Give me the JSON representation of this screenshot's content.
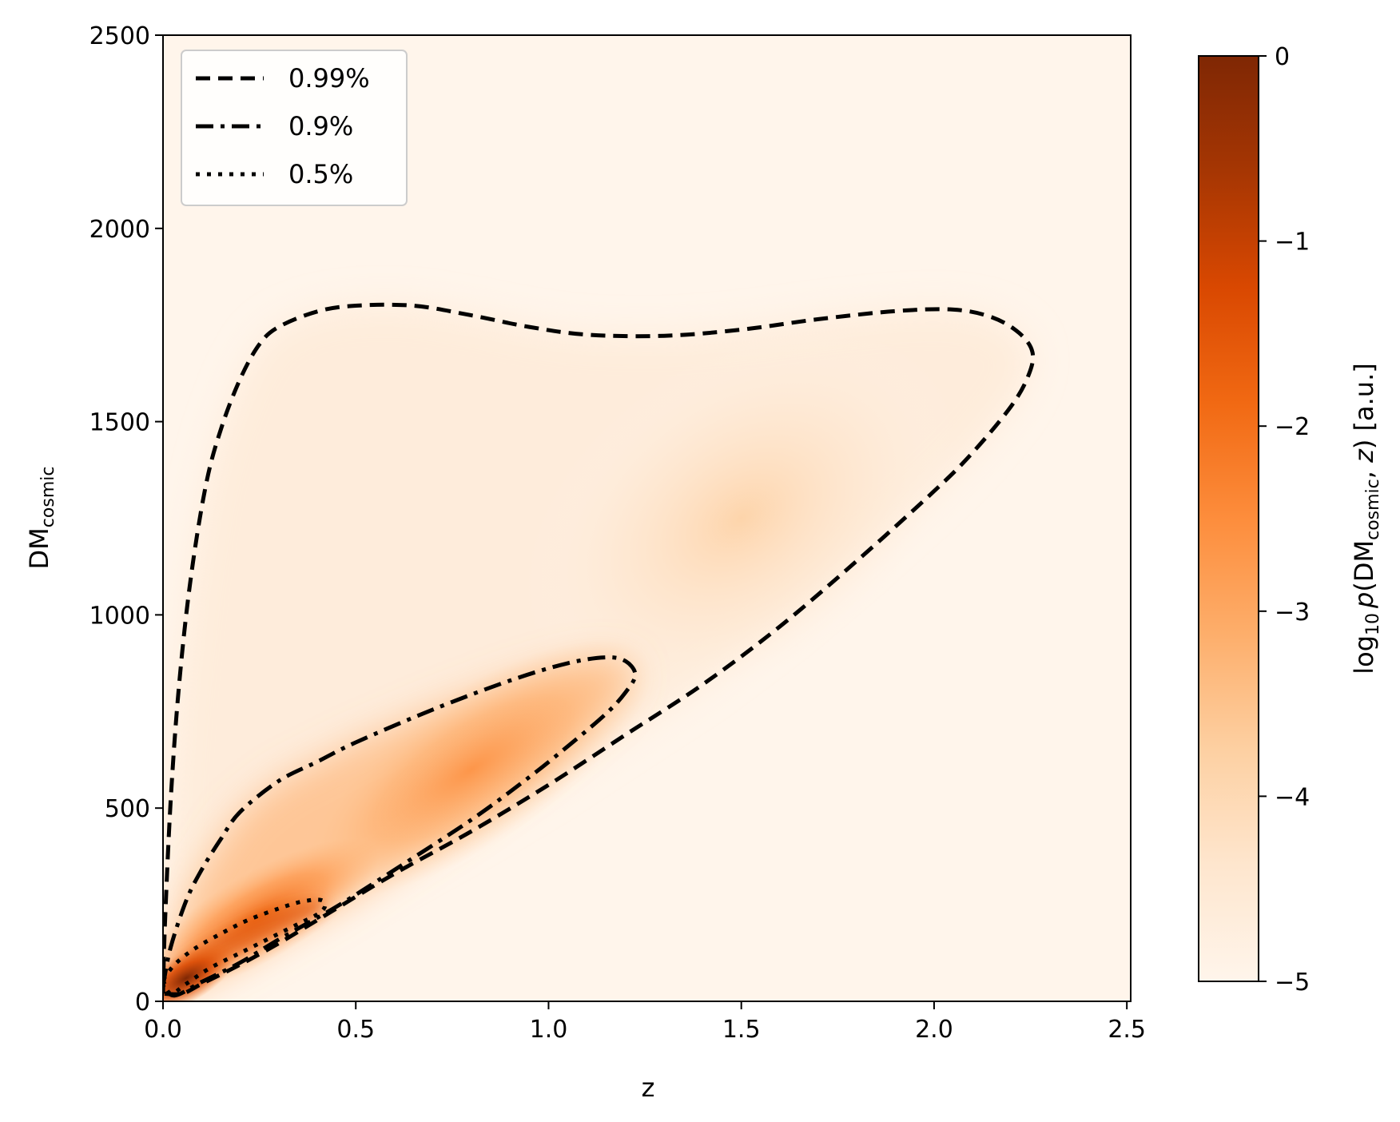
{
  "chart_data": {
    "type": "heatmap",
    "subtype": "2D probability density with contours",
    "xlabel": "z",
    "ylabel": {
      "base": "DM",
      "sub": "cosmic"
    },
    "xlim": [
      0.0,
      2.51
    ],
    "ylim": [
      0,
      2500
    ],
    "x_ticks": [
      {
        "value": 0.0,
        "label": "0.0"
      },
      {
        "value": 0.5,
        "label": "0.5"
      },
      {
        "value": 1.0,
        "label": "1.0"
      },
      {
        "value": 1.5,
        "label": "1.5"
      },
      {
        "value": 2.0,
        "label": "2.0"
      },
      {
        "value": 2.5,
        "label": "2.5"
      }
    ],
    "y_ticks": [
      {
        "value": 0,
        "label": "0"
      },
      {
        "value": 500,
        "label": "500"
      },
      {
        "value": 1000,
        "label": "1000"
      },
      {
        "value": 1500,
        "label": "1500"
      },
      {
        "value": 2000,
        "label": "2000"
      },
      {
        "value": 2500,
        "label": "2500"
      }
    ],
    "grid": false,
    "colormap": "Oranges",
    "colorbar": {
      "range": [
        -5,
        0
      ],
      "label": {
        "prefix": "log",
        "prefix_sub": "10",
        "p": "p",
        "open": "(DM",
        "sub": "cosmic",
        "close": ", ",
        "z": "z",
        "tail": ") [a.u.]"
      },
      "ticks": [
        {
          "value": 0,
          "label": "0"
        },
        {
          "value": -1,
          "label": "−1"
        },
        {
          "value": -2,
          "label": "−2"
        },
        {
          "value": -3,
          "label": "−3"
        },
        {
          "value": -4,
          "label": "−4"
        },
        {
          "value": -5,
          "label": "−5"
        }
      ],
      "stops": [
        "#fff5eb",
        "#fee6ce",
        "#fdd0a2",
        "#fdae6b",
        "#fd8d3c",
        "#f16913",
        "#d94801",
        "#a63603",
        "#7f2704"
      ]
    },
    "legend": {
      "placement": "top-left",
      "entries": [
        {
          "label": "0.99%",
          "style": "dashed"
        },
        {
          "label": "0.9%",
          "style": "dashdot"
        },
        {
          "label": "0.5%",
          "style": "dotted"
        }
      ]
    },
    "contours": [
      {
        "level": "0.99%",
        "style": "dashed",
        "points": [
          [
            0.0,
            20
          ],
          [
            0.005,
            200
          ],
          [
            0.02,
            520
          ],
          [
            0.04,
            800
          ],
          [
            0.07,
            1080
          ],
          [
            0.11,
            1330
          ],
          [
            0.15,
            1480
          ],
          [
            0.2,
            1610
          ],
          [
            0.25,
            1700
          ],
          [
            0.3,
            1745
          ],
          [
            0.4,
            1785
          ],
          [
            0.5,
            1800
          ],
          [
            0.65,
            1800
          ],
          [
            0.8,
            1775
          ],
          [
            0.95,
            1745
          ],
          [
            1.1,
            1725
          ],
          [
            1.3,
            1722
          ],
          [
            1.5,
            1738
          ],
          [
            1.7,
            1765
          ],
          [
            1.9,
            1786
          ],
          [
            2.05,
            1790
          ],
          [
            2.15,
            1770
          ],
          [
            2.22,
            1730
          ],
          [
            2.255,
            1680
          ],
          [
            2.245,
            1620
          ],
          [
            2.2,
            1540
          ],
          [
            2.1,
            1420
          ],
          [
            2.0,
            1320
          ],
          [
            1.8,
            1140
          ],
          [
            1.6,
            970
          ],
          [
            1.4,
            820
          ],
          [
            1.2,
            690
          ],
          [
            1.0,
            560
          ],
          [
            0.8,
            440
          ],
          [
            0.6,
            330
          ],
          [
            0.4,
            210
          ],
          [
            0.3,
            150
          ],
          [
            0.2,
            95
          ],
          [
            0.1,
            45
          ],
          [
            0.05,
            20
          ],
          [
            0.0,
            20
          ]
        ]
      },
      {
        "level": "0.9%",
        "style": "dashdot",
        "points": [
          [
            0.0,
            40
          ],
          [
            0.02,
            140
          ],
          [
            0.06,
            260
          ],
          [
            0.1,
            340
          ],
          [
            0.15,
            420
          ],
          [
            0.2,
            490
          ],
          [
            0.3,
            570
          ],
          [
            0.4,
            620
          ],
          [
            0.5,
            670
          ],
          [
            0.7,
            755
          ],
          [
            0.9,
            830
          ],
          [
            1.05,
            875
          ],
          [
            1.15,
            890
          ],
          [
            1.2,
            880
          ],
          [
            1.225,
            845
          ],
          [
            1.2,
            800
          ],
          [
            1.15,
            745
          ],
          [
            1.05,
            660
          ],
          [
            0.95,
            580
          ],
          [
            0.8,
            470
          ],
          [
            0.6,
            340
          ],
          [
            0.45,
            245
          ],
          [
            0.3,
            160
          ],
          [
            0.2,
            100
          ],
          [
            0.1,
            50
          ],
          [
            0.03,
            15
          ],
          [
            0.0,
            40
          ]
        ]
      },
      {
        "level": "0.5%",
        "style": "dotted",
        "points": [
          [
            0.0,
            55
          ],
          [
            0.03,
            95
          ],
          [
            0.08,
            135
          ],
          [
            0.15,
            175
          ],
          [
            0.22,
            210
          ],
          [
            0.3,
            240
          ],
          [
            0.36,
            258
          ],
          [
            0.41,
            262
          ],
          [
            0.42,
            245
          ],
          [
            0.4,
            225
          ],
          [
            0.35,
            200
          ],
          [
            0.28,
            165
          ],
          [
            0.2,
            125
          ],
          [
            0.12,
            85
          ],
          [
            0.06,
            45
          ],
          [
            0.02,
            20
          ],
          [
            0.0,
            55
          ]
        ]
      }
    ]
  }
}
